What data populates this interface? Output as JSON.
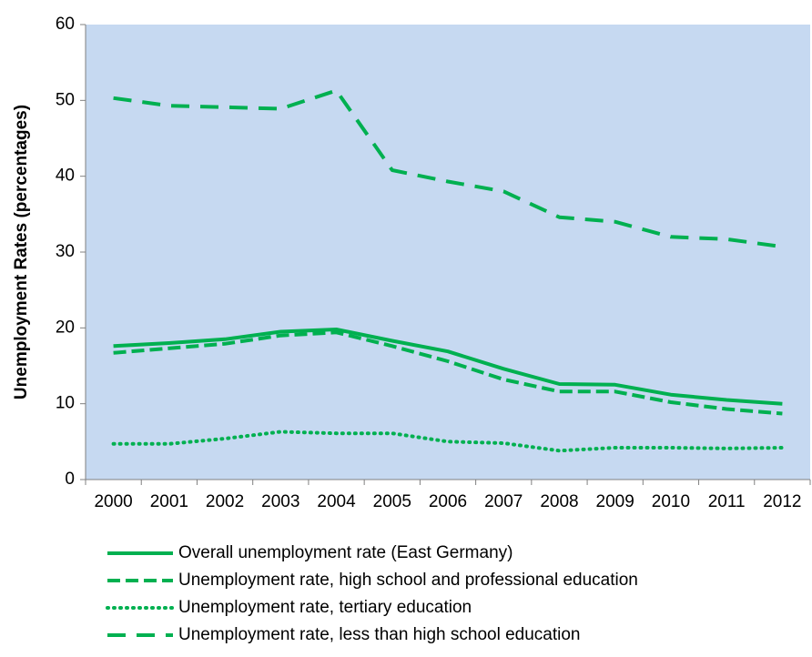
{
  "chart_data": {
    "type": "line",
    "title": "",
    "xlabel": "",
    "ylabel": "Unemployment Rates (percentages)",
    "ylim": [
      0,
      60
    ],
    "yticks": [
      0,
      10,
      20,
      30,
      40,
      50,
      60
    ],
    "grid": false,
    "legend_position": "bottom",
    "plot_background": "#C6D9F1",
    "line_color": "#00B050",
    "categories": [
      "2000",
      "2001",
      "2002",
      "2003",
      "2004",
      "2005",
      "2006",
      "2007",
      "2008",
      "2009",
      "2010",
      "2011",
      "2012"
    ],
    "series": [
      {
        "name": "Overall unemployment rate (East Germany)",
        "style": "solid",
        "values": [
          17.6,
          18.0,
          18.5,
          19.5,
          19.8,
          18.3,
          16.9,
          14.6,
          12.6,
          12.5,
          11.2,
          10.5,
          10.0
        ]
      },
      {
        "name": "Unemployment rate, high school and professional education",
        "style": "dashed",
        "values": [
          16.7,
          17.3,
          17.9,
          19.0,
          19.4,
          17.6,
          15.6,
          13.2,
          11.6,
          11.6,
          10.2,
          9.3,
          8.7
        ]
      },
      {
        "name": "Unemployment rate, tertiary education",
        "style": "dotted",
        "values": [
          4.7,
          4.7,
          5.4,
          6.3,
          6.1,
          6.1,
          5.0,
          4.8,
          3.8,
          4.2,
          4.2,
          4.1,
          4.2
        ]
      },
      {
        "name": "Unemployment rate, less than high school education",
        "style": "long-dash",
        "values": [
          50.3,
          49.3,
          49.1,
          48.9,
          51.3,
          40.8,
          39.3,
          38.0,
          34.6,
          34.0,
          32.0,
          31.7,
          30.7
        ]
      }
    ]
  }
}
